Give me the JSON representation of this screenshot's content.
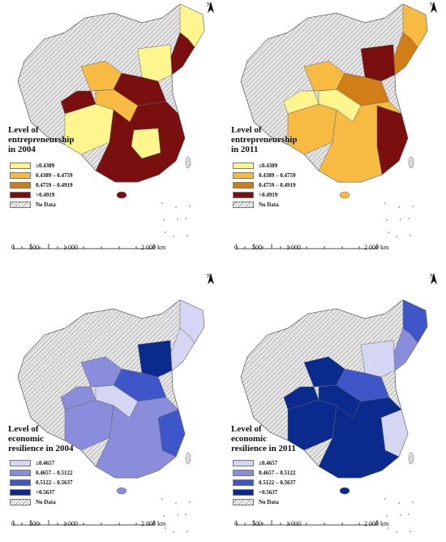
{
  "panels": [
    {
      "title_lines": [
        "Level of",
        "entrepreneurship",
        "in 2004"
      ],
      "legend": [
        "≤0.4389",
        "0.4389 – 0.4759",
        "0.4759 – 0.4919",
        ">0.4919",
        "No Data"
      ],
      "colors": [
        "#fdf58d",
        "#f7bb44",
        "#d27e16",
        "#7a0f0f"
      ]
    },
    {
      "title_lines": [
        "Level of",
        "entrepreneurship",
        "in 2011"
      ],
      "legend": [
        "≤0.4389",
        "0.4389 – 0.4759",
        "0.4759 – 0.4919",
        ">0.4919",
        "No Data"
      ],
      "colors": [
        "#fdf58d",
        "#f7bb44",
        "#d27e16",
        "#7a0f0f"
      ]
    },
    {
      "title_lines": [
        "Level of",
        "economic",
        "resilience in 2004"
      ],
      "legend": [
        "≤0.4657",
        "0.4657 – 0.5122",
        "0.5122 – 0.5637",
        ">0.5637",
        "No Data"
      ],
      "colors": [
        "#d4d6f3",
        "#8a8ddb",
        "#3f56c8",
        "#0a2a8e"
      ]
    },
    {
      "title_lines": [
        "Level of",
        "economic",
        "resilience in 2011"
      ],
      "legend": [
        "≤0.4657",
        "0.4657 – 0.5122",
        "0.5122 – 0.5637",
        ">0.5637",
        "No Data"
      ],
      "colors": [
        "#d4d6f3",
        "#8a8ddb",
        "#3f56c8",
        "#0a2a8e"
      ]
    }
  ],
  "scale_labels": [
    "0",
    "500",
    "1 000",
    "2 000 km"
  ],
  "north_label": "N",
  "no_data_color": "#e6e6e6"
}
